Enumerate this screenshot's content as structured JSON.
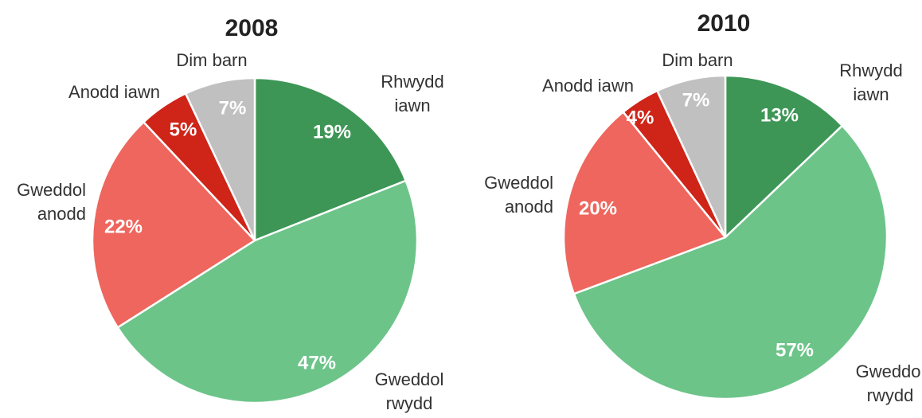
{
  "chart_data": [
    {
      "type": "pie",
      "title": "2008",
      "slices": [
        {
          "label": [
            "Rhwydd",
            "iawn"
          ],
          "value": 19,
          "value_label": "19%",
          "color": "#3d9656"
        },
        {
          "label": [
            "Gweddol",
            "rwydd"
          ],
          "value": 47,
          "value_label": "47%",
          "color": "#6cc489"
        },
        {
          "label": [
            "Gweddol",
            "anodd"
          ],
          "value": 22,
          "value_label": "22%",
          "color": "#ee665d"
        },
        {
          "label": [
            "Anodd iawn"
          ],
          "value": 5,
          "value_label": "5%",
          "color": "#cf2418"
        },
        {
          "label": [
            "Dim barn"
          ],
          "value": 7,
          "value_label": "7%",
          "color": "#c0c0c0"
        }
      ]
    },
    {
      "type": "pie",
      "title": "2010",
      "slices": [
        {
          "label": [
            "Rhwydd",
            "iawn"
          ],
          "value": 13,
          "value_label": "13%",
          "color": "#3d9656"
        },
        {
          "label": [
            "Gweddol",
            "rwydd"
          ],
          "value": 57,
          "value_label": "57%",
          "color": "#6cc489"
        },
        {
          "label": [
            "Gweddol",
            "anodd"
          ],
          "value": 20,
          "value_label": "20%",
          "color": "#ee665d"
        },
        {
          "label": [
            "Anodd iawn"
          ],
          "value": 4,
          "value_label": "4%",
          "color": "#cf2418"
        },
        {
          "label": [
            "Dim barn"
          ],
          "value": 7,
          "value_label": "7%",
          "color": "#c0c0c0"
        }
      ]
    }
  ]
}
